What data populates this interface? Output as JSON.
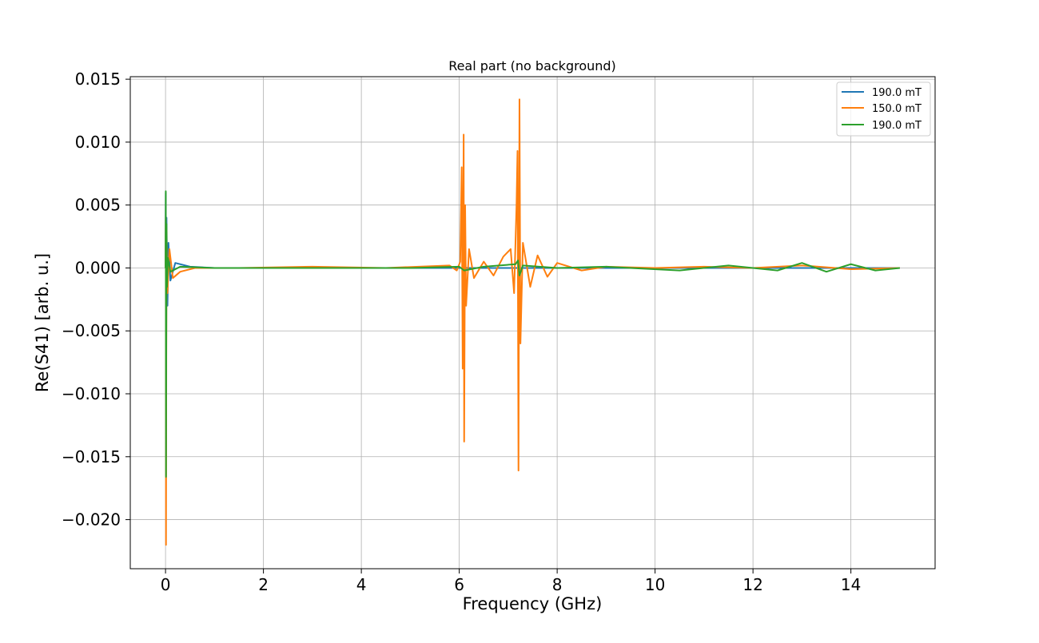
{
  "chart_data": {
    "type": "line",
    "title": "Real part (no background)",
    "xlabel": "Frequency (GHz)",
    "ylabel": "Re(S41) [arb. u.]",
    "xlim": [
      -0.72,
      15.72
    ],
    "ylim": [
      -0.0239,
      0.0152
    ],
    "xticks": [
      0,
      2,
      4,
      6,
      8,
      10,
      12,
      14
    ],
    "xtick_labels": [
      "0",
      "2",
      "4",
      "6",
      "8",
      "10",
      "12",
      "14"
    ],
    "yticks": [
      0.015,
      0.01,
      0.005,
      0.0,
      -0.005,
      -0.01,
      -0.015,
      -0.02
    ],
    "ytick_labels": [
      "0.015",
      "0.010",
      "0.005",
      "0.000",
      "−0.005",
      "−0.010",
      "−0.015",
      "−0.020"
    ],
    "grid": true,
    "legend_position": "top-right",
    "series": [
      {
        "name": "190.0 mT",
        "color": "#1f77b4",
        "points": [
          [
            0.0,
            0.0
          ],
          [
            0.005,
            0.006
          ],
          [
            0.01,
            -0.015
          ],
          [
            0.02,
            0.004
          ],
          [
            0.04,
            -0.003
          ],
          [
            0.06,
            0.002
          ],
          [
            0.1,
            -0.001
          ],
          [
            0.2,
            0.0004
          ],
          [
            0.5,
            0.0001
          ],
          [
            1.0,
            0.0
          ],
          [
            3.0,
            0.0
          ],
          [
            5.0,
            0.0
          ],
          [
            7.0,
            0.0
          ],
          [
            9.0,
            0.0
          ],
          [
            11.0,
            0.0
          ],
          [
            13.0,
            0.0
          ],
          [
            15.0,
            0.0
          ]
        ]
      },
      {
        "name": "150.0 mT",
        "color": "#ff7f0e",
        "points": [
          [
            0.0,
            0.0
          ],
          [
            0.005,
            0.004
          ],
          [
            0.01,
            -0.022
          ],
          [
            0.02,
            0.003
          ],
          [
            0.04,
            -0.002
          ],
          [
            0.08,
            0.0015
          ],
          [
            0.15,
            -0.0008
          ],
          [
            0.3,
            -0.0003
          ],
          [
            0.6,
            0.0
          ],
          [
            1.5,
            0.0
          ],
          [
            3.0,
            0.0001
          ],
          [
            4.5,
            0.0
          ],
          [
            5.8,
            0.0002
          ],
          [
            5.95,
            -0.0002
          ],
          [
            6.02,
            0.0005
          ],
          [
            6.05,
            0.008
          ],
          [
            6.07,
            -0.008
          ],
          [
            6.09,
            0.0106
          ],
          [
            6.1,
            -0.0138
          ],
          [
            6.12,
            0.005
          ],
          [
            6.14,
            -0.003
          ],
          [
            6.2,
            0.0015
          ],
          [
            6.3,
            -0.0008
          ],
          [
            6.5,
            0.0005
          ],
          [
            6.7,
            -0.0006
          ],
          [
            6.9,
            0.0009
          ],
          [
            7.05,
            0.0015
          ],
          [
            7.12,
            -0.002
          ],
          [
            7.17,
            0.005
          ],
          [
            7.19,
            0.0093
          ],
          [
            7.21,
            -0.0161
          ],
          [
            7.23,
            0.0134
          ],
          [
            7.25,
            -0.006
          ],
          [
            7.3,
            0.002
          ],
          [
            7.45,
            -0.0015
          ],
          [
            7.6,
            0.001
          ],
          [
            7.8,
            -0.0007
          ],
          [
            8.0,
            0.0004
          ],
          [
            8.5,
            -0.0002
          ],
          [
            9.0,
            0.0001
          ],
          [
            10.0,
            0.0
          ],
          [
            11.0,
            0.0001
          ],
          [
            12.0,
            0.0
          ],
          [
            13.0,
            0.0002
          ],
          [
            14.0,
            -0.0001
          ],
          [
            15.0,
            0.0
          ]
        ]
      },
      {
        "name": "190.0 mT",
        "color": "#2ca02c",
        "points": [
          [
            0.0,
            0.0
          ],
          [
            0.005,
            0.0061
          ],
          [
            0.01,
            -0.0166
          ],
          [
            0.02,
            0.0035
          ],
          [
            0.03,
            -0.0015
          ],
          [
            0.05,
            0.0008
          ],
          [
            0.1,
            -0.0003
          ],
          [
            0.3,
            0.0001
          ],
          [
            1.0,
            0.0
          ],
          [
            3.0,
            0.0
          ],
          [
            5.0,
            0.0
          ],
          [
            6.0,
            0.0001
          ],
          [
            6.1,
            -0.0002
          ],
          [
            6.5,
            0.0001
          ],
          [
            7.15,
            0.0003
          ],
          [
            7.2,
            0.0006
          ],
          [
            7.23,
            -0.0006
          ],
          [
            7.3,
            0.0002
          ],
          [
            8.0,
            0.0
          ],
          [
            9.0,
            0.0001
          ],
          [
            10.5,
            -0.0002
          ],
          [
            11.5,
            0.0002
          ],
          [
            12.5,
            -0.0002
          ],
          [
            13.0,
            0.0004
          ],
          [
            13.5,
            -0.0003
          ],
          [
            14.0,
            0.0003
          ],
          [
            14.5,
            -0.0002
          ],
          [
            15.0,
            0.0
          ]
        ]
      }
    ]
  }
}
